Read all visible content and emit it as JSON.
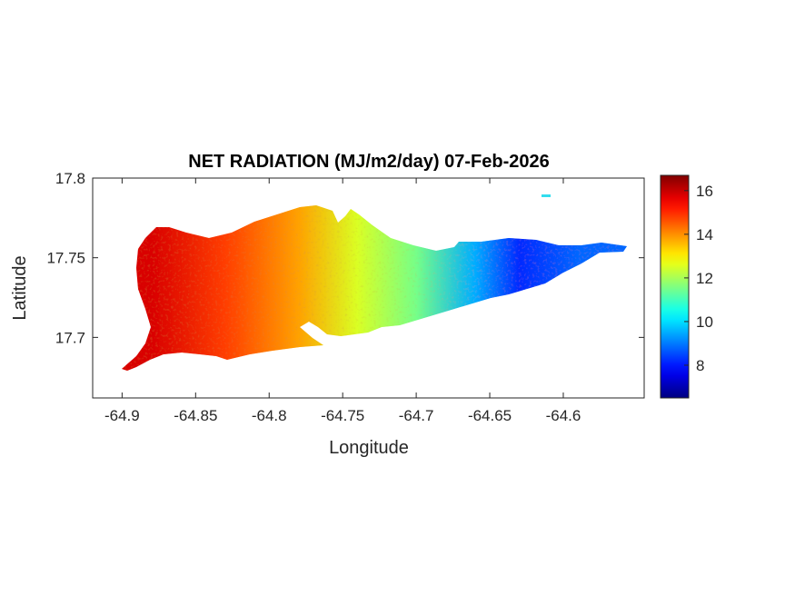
{
  "chart_data": {
    "type": "heatmap",
    "title": "NET RADIATION (MJ/m2/day) 07-Feb-2026",
    "xlabel": "Longitude",
    "ylabel": "Latitude",
    "xlim": [
      -64.92,
      -64.545
    ],
    "ylim": [
      17.662,
      17.8
    ],
    "xticks": [
      -64.9,
      -64.85,
      -64.8,
      -64.75,
      -64.7,
      -64.65,
      -64.6
    ],
    "xtick_labels": [
      "-64.9",
      "-64.85",
      "-64.8",
      "-64.75",
      "-64.7",
      "-64.65",
      "-64.6"
    ],
    "yticks": [
      17.7,
      17.75,
      17.8
    ],
    "ytick_labels": [
      "17.7",
      "17.75",
      "17.8"
    ],
    "colorbar": {
      "colormap": "jet",
      "range": [
        6.5,
        16.7
      ],
      "ticks": [
        8,
        10,
        12,
        14,
        16
      ],
      "tick_labels": [
        "8",
        "10",
        "12",
        "14",
        "16"
      ]
    },
    "grid": false,
    "field_gradient": [
      {
        "lon": -64.88,
        "value": 15.8
      },
      {
        "lon": -64.83,
        "value": 14.8
      },
      {
        "lon": -64.78,
        "value": 13.8
      },
      {
        "lon": -64.74,
        "value": 12.5
      },
      {
        "lon": -64.7,
        "value": 11.5
      },
      {
        "lon": -64.66,
        "value": 9.5
      },
      {
        "lon": -64.63,
        "value": 8.2
      },
      {
        "lon": -64.59,
        "value": 8.8
      }
    ]
  }
}
